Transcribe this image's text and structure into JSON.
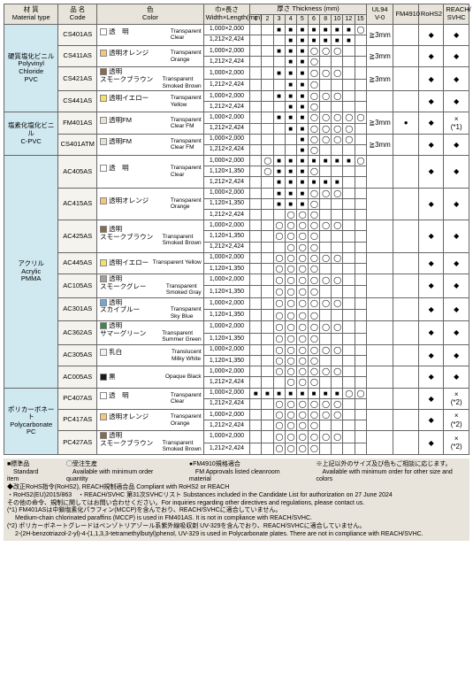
{
  "headers": {
    "material": "材 質\nMaterial type",
    "code": "品 名\nCode",
    "color": "色\nColor",
    "size": "巾×長さ\nWidth×Length(mm)",
    "thickness": "厚さ  Thickness (mm)",
    "thk_cols": [
      "1",
      "2",
      "3",
      "4",
      "5",
      "6",
      "8",
      "10",
      "12",
      "15"
    ],
    "ul94": "UL94\nV-0",
    "fm4910": "FM4910",
    "rohs": "RoHS2",
    "reach": "REACH/\nSVHC"
  },
  "materials": [
    {
      "name_jp": "硬質塩化ビニル",
      "name_en": "Polyvinyl Chloride",
      "name_abbr": "PVC",
      "bg": "#d0e8f0",
      "products": [
        {
          "code": "CS401AS",
          "swatch": "#ffffff",
          "color_jp": "透　明",
          "color_en": "Transparent\nClear",
          "sizes": [
            {
              "s": "1,000×2,000",
              "t": [
                "",
                "",
                "■",
                "■",
                "■",
                "■",
                "■",
                "■",
                "■",
                "◯"
              ]
            },
            {
              "s": "1,212×2,424",
              "t": [
                "",
                "",
                "",
                "■",
                "■",
                "■",
                "■",
                "■",
                "■",
                ""
              ]
            }
          ],
          "ul": "≧3mm",
          "fm": "",
          "rohs": "◆",
          "reach": "◆"
        },
        {
          "code": "CS411AS",
          "swatch": "#f6c67a",
          "color_jp": "透明オレンジ",
          "color_en": "Transparent\nOrange",
          "sizes": [
            {
              "s": "1,000×2,000",
              "t": [
                "",
                "",
                "■",
                "■",
                "■",
                "◯",
                "◯",
                "◯",
                "",
                ""
              ]
            },
            {
              "s": "1,212×2,424",
              "t": [
                "",
                "",
                "",
                "■",
                "■",
                "◯",
                "",
                "",
                "",
                ""
              ]
            }
          ],
          "ul": "≧3mm",
          "fm": "",
          "rohs": "◆",
          "reach": "◆"
        },
        {
          "code": "CS421AS",
          "swatch": "#8a6a4a",
          "color_jp": "透明\nスモークブラウン",
          "color_en": "Transparent\nSmoked Brown",
          "sizes": [
            {
              "s": "1,000×2,000",
              "t": [
                "",
                "",
                "■",
                "■",
                "■",
                "◯",
                "◯",
                "◯",
                "",
                ""
              ]
            },
            {
              "s": "1,212×2,424",
              "t": [
                "",
                "",
                "",
                "■",
                "■",
                "◯",
                "",
                "",
                "",
                ""
              ]
            }
          ],
          "ul": "≧3mm",
          "fm": "",
          "rohs": "◆",
          "reach": "◆"
        },
        {
          "code": "CS441AS",
          "swatch": "#f3e06a",
          "color_jp": "透明イエロー",
          "color_en": "Transparent\nYellow",
          "sizes": [
            {
              "s": "1,000×2,000",
              "t": [
                "",
                "",
                "■",
                "■",
                "■",
                "◯",
                "◯",
                "◯",
                "",
                ""
              ]
            },
            {
              "s": "1,212×2,424",
              "t": [
                "",
                "",
                "",
                "■",
                "■",
                "◯",
                "",
                "",
                "",
                ""
              ]
            }
          ],
          "ul": "",
          "fm": "",
          "rohs": "◆",
          "reach": "◆"
        }
      ]
    },
    {
      "name_jp": "塩素化塩化ビニル",
      "name_en": "C-PVC",
      "name_abbr": "",
      "bg": "#d0e8f0",
      "products": [
        {
          "code": "FM401AS",
          "swatch": "#e8e2d6",
          "color_jp": "透明FM",
          "color_en": "Transparent\nClear FM",
          "sizes": [
            {
              "s": "1,000×2,000",
              "t": [
                "",
                "",
                "■",
                "■",
                "■",
                "◯",
                "◯",
                "◯",
                "◯",
                "◯"
              ]
            },
            {
              "s": "1,212×2,424",
              "t": [
                "",
                "",
                "",
                "■",
                "■",
                "◯",
                "◯",
                "◯",
                "◯",
                ""
              ]
            }
          ],
          "ul": "≧3mm",
          "fm": "●",
          "rohs": "◆",
          "reach": "×\n(*1)"
        },
        {
          "code": "CS401ATM",
          "swatch": "#e8e2d6",
          "color_jp": "透明FM",
          "color_en": "Transparent\nClear FM",
          "sizes": [
            {
              "s": "1,000×2,000",
              "t": [
                "",
                "",
                "",
                "",
                "■",
                "◯",
                "◯",
                "◯",
                "◯",
                ""
              ]
            },
            {
              "s": "1,212×2,424",
              "t": [
                "",
                "",
                "",
                "",
                "■",
                "◯",
                "",
                "",
                "",
                ""
              ]
            }
          ],
          "ul": "≧3mm",
          "fm": "",
          "rohs": "◆",
          "reach": "◆"
        }
      ]
    },
    {
      "name_jp": "アクリル",
      "name_en": "Acrylic",
      "name_abbr": "PMMA",
      "bg": "#d0e8f0",
      "products": [
        {
          "code": "AC405AS",
          "swatch": "#ffffff",
          "color_jp": "透　明",
          "color_en": "Transparent\nClear",
          "sizes": [
            {
              "s": "1,000×2,000",
              "t": [
                "",
                "◯",
                "■",
                "■",
                "■",
                "■",
                "■",
                "■",
                "■",
                "◯"
              ]
            },
            {
              "s": "1,120×1,350",
              "t": [
                "",
                "◯",
                "■",
                "■",
                "■",
                "◯",
                "",
                "",
                "",
                ""
              ]
            },
            {
              "s": "1,212×2,424",
              "t": [
                "",
                "",
                "■",
                "■",
                "■",
                "■",
                "■",
                "■",
                "",
                ""
              ]
            }
          ],
          "ul": "",
          "fm": "",
          "rohs": "◆",
          "reach": "◆"
        },
        {
          "code": "AC415AS",
          "swatch": "#f6c67a",
          "color_jp": "透明オレンジ",
          "color_en": "Transparent\nOrange",
          "sizes": [
            {
              "s": "1,000×2,000",
              "t": [
                "",
                "",
                "■",
                "■",
                "■",
                "◯",
                "◯",
                "◯",
                "",
                ""
              ]
            },
            {
              "s": "1,120×1,350",
              "t": [
                "",
                "",
                "■",
                "■",
                "■",
                "◯",
                "",
                "",
                "",
                ""
              ]
            },
            {
              "s": "1,212×2,424",
              "t": [
                "",
                "",
                "",
                "◯",
                "◯",
                "◯",
                "",
                "",
                "",
                ""
              ]
            }
          ],
          "ul": "",
          "fm": "",
          "rohs": "◆",
          "reach": "◆"
        },
        {
          "code": "AC425AS",
          "swatch": "#8a6a4a",
          "color_jp": "透明\nスモークブラウン",
          "color_en": "Transparent\nSmoked Brown",
          "sizes": [
            {
              "s": "1,000×2,000",
              "t": [
                "",
                "",
                "◯",
                "◯",
                "◯",
                "◯",
                "◯",
                "◯",
                "",
                ""
              ]
            },
            {
              "s": "1,120×1,350",
              "t": [
                "",
                "",
                "◯",
                "◯",
                "◯",
                "◯",
                "",
                "",
                "",
                ""
              ]
            },
            {
              "s": "1,212×2,424",
              "t": [
                "",
                "",
                "",
                "◯",
                "◯",
                "◯",
                "",
                "",
                "",
                ""
              ]
            }
          ],
          "ul": "",
          "fm": "",
          "rohs": "◆",
          "reach": "◆"
        },
        {
          "code": "AC445AS",
          "swatch": "#f3e06a",
          "color_jp": "透明イエロー",
          "color_en": "Transparent Yellow",
          "sizes": [
            {
              "s": "1,000×2,000",
              "t": [
                "",
                "",
                "◯",
                "◯",
                "◯",
                "◯",
                "◯",
                "◯",
                "",
                ""
              ]
            },
            {
              "s": "1,120×1,350",
              "t": [
                "",
                "",
                "◯",
                "◯",
                "◯",
                "◯",
                "",
                "",
                "",
                ""
              ]
            }
          ],
          "ul": "",
          "fm": "",
          "rohs": "◆",
          "reach": "◆"
        },
        {
          "code": "AC105AS",
          "swatch": "#a8a098",
          "color_jp": "透明\nスモークグレー",
          "color_en": "Transparent\nSmoked Gray",
          "sizes": [
            {
              "s": "1,000×2,000",
              "t": [
                "",
                "",
                "◯",
                "◯",
                "◯",
                "◯",
                "◯",
                "◯",
                "",
                ""
              ]
            },
            {
              "s": "1,120×1,350",
              "t": [
                "",
                "",
                "◯",
                "◯",
                "◯",
                "◯",
                "",
                "",
                "",
                ""
              ]
            }
          ],
          "ul": "",
          "fm": "",
          "rohs": "◆",
          "reach": "◆"
        },
        {
          "code": "AC301AS",
          "swatch": "#6fa8d8",
          "color_jp": "透明\nスカイブルー",
          "color_en": "Transparent\nSky Blue",
          "sizes": [
            {
              "s": "1,000×2,000",
              "t": [
                "",
                "",
                "◯",
                "◯",
                "◯",
                "◯",
                "◯",
                "◯",
                "",
                ""
              ]
            },
            {
              "s": "1,120×1,350",
              "t": [
                "",
                "",
                "◯",
                "◯",
                "◯",
                "◯",
                "",
                "",
                "",
                ""
              ]
            }
          ],
          "ul": "",
          "fm": "",
          "rohs": "◆",
          "reach": "◆"
        },
        {
          "code": "AC362AS",
          "swatch": "#3a8a4a",
          "color_jp": "透明\nサマーグリーン",
          "color_en": "Transparent\nSummer Green",
          "sizes": [
            {
              "s": "1,000×2,000",
              "t": [
                "",
                "",
                "◯",
                "◯",
                "◯",
                "◯",
                "◯",
                "◯",
                "",
                ""
              ]
            },
            {
              "s": "1,120×1,350",
              "t": [
                "",
                "",
                "◯",
                "◯",
                "◯",
                "◯",
                "",
                "",
                "",
                ""
              ]
            }
          ],
          "ul": "",
          "fm": "",
          "rohs": "◆",
          "reach": "◆"
        },
        {
          "code": "AC305AS",
          "swatch": "#f4f2ec",
          "color_jp": "乳白",
          "color_en": "Translucent\nMilky White",
          "sizes": [
            {
              "s": "1,000×2,000",
              "t": [
                "",
                "",
                "◯",
                "◯",
                "◯",
                "◯",
                "◯",
                "◯",
                "",
                ""
              ]
            },
            {
              "s": "1,120×1,350",
              "t": [
                "",
                "",
                "◯",
                "◯",
                "◯",
                "◯",
                "",
                "",
                "",
                ""
              ]
            }
          ],
          "ul": "",
          "fm": "",
          "rohs": "◆",
          "reach": "◆"
        },
        {
          "code": "AC005AS",
          "swatch": "#1a1a1a",
          "color_jp": "黒",
          "color_en": "Opaque Black",
          "sizes": [
            {
              "s": "1,000×2,000",
              "t": [
                "",
                "",
                "◯",
                "◯",
                "◯",
                "◯",
                "◯",
                "◯",
                "",
                ""
              ]
            },
            {
              "s": "1,212×2,424",
              "t": [
                "",
                "",
                "",
                "◯",
                "◯",
                "◯",
                "",
                "",
                "",
                ""
              ]
            }
          ],
          "ul": "",
          "fm": "",
          "rohs": "◆",
          "reach": "◆"
        }
      ]
    },
    {
      "name_jp": "ポリカーボネート",
      "name_en": "Polycarbonate",
      "name_abbr": "PC",
      "bg": "#d0e8f0",
      "products": [
        {
          "code": "PC407AS",
          "swatch": "#ffffff",
          "color_jp": "透　明",
          "color_en": "Transparent\nClear",
          "sizes": [
            {
              "s": "1,000×2,000",
              "t": [
                "■",
                "■",
                "■",
                "■",
                "■",
                "■",
                "■",
                "■",
                "◯",
                "◯"
              ]
            },
            {
              "s": "1,212×2,424",
              "t": [
                "",
                "",
                "◯",
                "◯",
                "◯",
                "◯",
                "◯",
                "◯",
                "",
                ""
              ]
            }
          ],
          "ul": "",
          "fm": "",
          "rohs": "◆",
          "reach": "×\n(*2)"
        },
        {
          "code": "PC417AS",
          "swatch": "#f6c67a",
          "color_jp": "透明オレンジ",
          "color_en": "Transparent\nOrange",
          "sizes": [
            {
              "s": "1,000×2,000",
              "t": [
                "",
                "",
                "◯",
                "◯",
                "◯",
                "◯",
                "◯",
                "◯",
                "",
                ""
              ]
            },
            {
              "s": "1,212×2,424",
              "t": [
                "",
                "",
                "◯",
                "◯",
                "◯",
                "◯",
                "",
                "",
                "",
                ""
              ]
            }
          ],
          "ul": "",
          "fm": "",
          "rohs": "◆",
          "reach": "×\n(*2)"
        },
        {
          "code": "PC427AS",
          "swatch": "#8a6a4a",
          "color_jp": "透明\nスモークブラウン",
          "color_en": "Transparent\nSmoked Brown",
          "sizes": [
            {
              "s": "1,000×2,000",
              "t": [
                "",
                "",
                "◯",
                "◯",
                "◯",
                "◯",
                "◯",
                "◯",
                "",
                ""
              ]
            },
            {
              "s": "1,212×2,424",
              "t": [
                "",
                "",
                "◯",
                "◯",
                "◯",
                "◯",
                "",
                "",
                "",
                ""
              ]
            }
          ],
          "ul": "",
          "fm": "",
          "rohs": "◆",
          "reach": "×\n(*2)"
        }
      ]
    }
  ],
  "legend": {
    "row1": [
      "■標準品\n　Standard item",
      "◯受注生産\n　Available with minimum order quantity",
      "●FM4910規格適合\n　FM Approvals listed cleanroom material",
      "※上記以外のサイズ及び色もご相談に応じます。\n　Available with minimum order for other size and colors"
    ],
    "lines": [
      "◆改正RoHS指令(RoHS2), REACH規制適合品  Compliant with RoHS2 or REACH",
      "・RoHS2(EU)2015/863　・REACH/SVHC 第31次SVHCリスト Substances included in the Candidate List for authorization on 27 June 2024",
      "その他の命令、規制に関してはお問い合わせください。For inquiries regarding other directives and regulations, please contact us.",
      "(*1) FM401ASは中鎖塩素化パラフィン(MCCP)を含んでおり、REACH/SVHCに適合していません。\n　 Medium-chain chlorinated paraffins (MCCP) is used in FM401AS. It is not in compliance with REACH/SVHC.",
      "(*2) ポリカーボネートグレードはベンゾトリアゾール系紫外線吸収剤 UV-329を含んでおり、REACH/SVHCに適合していません。\n　 2-(2H-benzotriazol-2-yl)-4-(1,1,3,3-tetramethylbutyl)phenol, UV-329 is used in Polycarbonate plates. There are not in compliance with REACH/SVHC."
    ]
  }
}
